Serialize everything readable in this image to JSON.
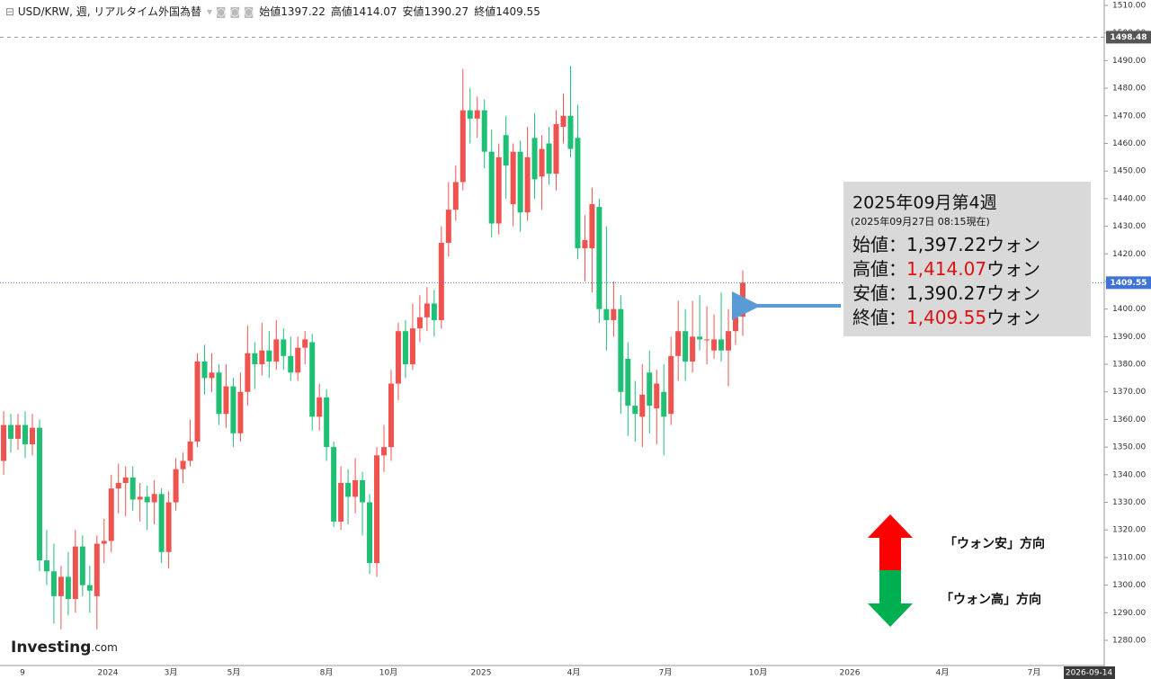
{
  "chart_data": {
    "type": "candlestick",
    "title": "USD/KRW, 週, リアルタイム外国為替",
    "ohlc_labels": [
      "始値",
      "高値",
      "安値",
      "終値"
    ],
    "up_color": "#ef5350",
    "down_color": "#1fbf75",
    "open": [
      1330,
      1345,
      1358,
      1353,
      1358,
      1351,
      1357,
      1309,
      1305,
      1296,
      1303,
      1295,
      1314,
      1300,
      1296,
      1315,
      1316,
      1335,
      1337,
      1339,
      1331,
      1332,
      1330,
      1333,
      1312,
      1330,
      1342,
      1345,
      1352,
      1381,
      1375,
      1377,
      1362,
      1372,
      1355,
      1370,
      1384,
      1380,
      1385,
      1381,
      1389,
      1383,
      1377,
      1386,
      1388,
      1361,
      1368,
      1350,
      1323,
      1337,
      1332,
      1338,
      1330,
      1308,
      1347,
      1350,
      1373,
      1392,
      1380,
      1393,
      1397,
      1402,
      1396,
      1424,
      1436,
      1446,
      1472,
      1469,
      1472,
      1457,
      1431,
      1463,
      1438,
      1457,
      1435,
      1462,
      1448,
      1460,
      1449,
      1466,
      1470,
      1462,
      1422,
      1422,
      1437,
      1400,
      1396,
      1400,
      1382,
      1365,
      1361,
      1377,
      1364,
      1370,
      1362,
      1383,
      1392,
      1381,
      1390,
      1389,
      1385,
      1389,
      1385,
      1392,
      1397.22
    ],
    "high": [
      1350,
      1363,
      1362,
      1362,
      1363,
      1362,
      1360,
      1320,
      1315,
      1307,
      1312,
      1320,
      1318,
      1307,
      1318,
      1324,
      1340,
      1344,
      1343,
      1343,
      1337,
      1336,
      1338,
      1335,
      1334,
      1346,
      1348,
      1360,
      1384,
      1387,
      1384,
      1380,
      1380,
      1375,
      1377,
      1394,
      1388,
      1395,
      1392,
      1396,
      1393,
      1390,
      1390,
      1392,
      1391,
      1373,
      1371,
      1352,
      1343,
      1342,
      1346,
      1341,
      1333,
      1350,
      1358,
      1378,
      1395,
      1396,
      1402,
      1405,
      1408,
      1407,
      1430,
      1446,
      1452,
      1487,
      1480,
      1477,
      1476,
      1465,
      1460,
      1470,
      1460,
      1461,
      1466,
      1471,
      1463,
      1466,
      1472,
      1478,
      1488,
      1474,
      1434,
      1444,
      1440,
      1430,
      1410,
      1405,
      1388,
      1374,
      1380,
      1385,
      1378,
      1380,
      1390,
      1403,
      1400,
      1403,
      1405,
      1401,
      1398,
      1406,
      1400,
      1405,
      1414.07
    ],
    "low": [
      1322,
      1340,
      1348,
      1349,
      1346,
      1347,
      1305,
      1300,
      1286,
      1284,
      1289,
      1290,
      1296,
      1290,
      1284,
      1308,
      1312,
      1326,
      1325,
      1327,
      1323,
      1320,
      1322,
      1308,
      1306,
      1327,
      1337,
      1343,
      1350,
      1369,
      1370,
      1358,
      1357,
      1350,
      1352,
      1365,
      1371,
      1376,
      1375,
      1378,
      1378,
      1374,
      1374,
      1380,
      1356,
      1356,
      1345,
      1321,
      1320,
      1322,
      1326,
      1318,
      1304,
      1303,
      1341,
      1345,
      1367,
      1375,
      1378,
      1388,
      1392,
      1390,
      1393,
      1419,
      1432,
      1443,
      1460,
      1462,
      1451,
      1426,
      1427,
      1440,
      1430,
      1428,
      1432,
      1440,
      1436,
      1445,
      1443,
      1460,
      1455,
      1418,
      1410,
      1406,
      1395,
      1385,
      1390,
      1362,
      1354,
      1352,
      1350,
      1355,
      1351,
      1347,
      1358,
      1374,
      1374,
      1377,
      1385,
      1380,
      1382,
      1381,
      1372,
      1387,
      1390.27
    ],
    "close": [
      1345,
      1358,
      1353,
      1358,
      1351,
      1357,
      1309,
      1305,
      1296,
      1303,
      1295,
      1314,
      1300,
      1298,
      1315,
      1316,
      1335,
      1337,
      1339,
      1331,
      1332,
      1330,
      1333,
      1312,
      1330,
      1342,
      1345,
      1352,
      1381,
      1375,
      1377,
      1362,
      1372,
      1355,
      1370,
      1384,
      1380,
      1385,
      1381,
      1389,
      1383,
      1377,
      1386,
      1389,
      1361,
      1368,
      1350,
      1323,
      1337,
      1332,
      1338,
      1330,
      1308,
      1347,
      1350,
      1373,
      1392,
      1380,
      1393,
      1397,
      1402,
      1396,
      1424,
      1436,
      1446,
      1472,
      1469,
      1472,
      1457,
      1431,
      1455,
      1452,
      1457,
      1435,
      1455,
      1447,
      1458,
      1449,
      1467,
      1470,
      1458,
      1422,
      1425,
      1438,
      1400,
      1396,
      1400,
      1370,
      1365,
      1362,
      1369,
      1365,
      1373,
      1361,
      1383,
      1392,
      1381,
      1390,
      1389,
      1389,
      1389,
      1385,
      1392,
      1397,
      1409.55
    ],
    "xtick_labels": [
      "9",
      "2024",
      "3月",
      "5月",
      "8月",
      "10月",
      "2025",
      "4月",
      "7月",
      "10月",
      "2026",
      "4月",
      "7月"
    ],
    "ylim": [
      1280,
      1510
    ],
    "yticks": [
      {
        "value": 1280,
        "label": "1280.00"
      },
      {
        "value": 1290,
        "label": "1290.00"
      },
      {
        "value": 1300,
        "label": "1300.00"
      },
      {
        "value": 1310,
        "label": "1310.00"
      },
      {
        "value": 1320,
        "label": "1320.00"
      },
      {
        "value": 1330,
        "label": "1330.00"
      },
      {
        "value": 1340,
        "label": "1340.00"
      },
      {
        "value": 1350,
        "label": "1350.00"
      },
      {
        "value": 1360,
        "label": "1360.00"
      },
      {
        "value": 1370,
        "label": "1370.00"
      },
      {
        "value": 1380,
        "label": "1380.00"
      },
      {
        "value": 1390,
        "label": "1390.00"
      },
      {
        "value": 1400,
        "label": "1400.00"
      },
      {
        "value": 1410,
        "label": "1410.00"
      },
      {
        "value": 1420,
        "label": "1420.00"
      },
      {
        "value": 1430,
        "label": "1430.00"
      },
      {
        "value": 1440,
        "label": "1440.00"
      },
      {
        "value": 1450,
        "label": "1450.00"
      },
      {
        "value": 1460,
        "label": "1460.00"
      },
      {
        "value": 1470,
        "label": "1470.00"
      },
      {
        "value": 1480,
        "label": "1480.00"
      },
      {
        "value": 1490,
        "label": "1490.00"
      },
      {
        "value": 1500,
        "label": "1500.00"
      },
      {
        "value": 1510,
        "label": "1510.00"
      }
    ],
    "reference_line": 1498.48,
    "cursor_date": "2026-09-14",
    "annotation": {
      "title": "2025年09月第4週",
      "subtitle": "(2025年09月27日 08:15現在)",
      "rows": [
        {
          "label": "始値：",
          "value": "1,397.22",
          "unit": "ウォン",
          "value_color": "#111111"
        },
        {
          "label": "高値：",
          "value": "1,414.07",
          "unit": "ウォン",
          "value_color": "#e01010"
        },
        {
          "label": "安値：",
          "value": "1,390.27",
          "unit": "ウォン",
          "value_color": "#111111"
        },
        {
          "label": "終値：",
          "value": "1,409.55",
          "unit": "ウォン",
          "value_color": "#e01010"
        }
      ]
    },
    "direction_labels": [
      "「ウォン安」方向",
      "「ウォン高」方向"
    ],
    "logo": {
      "name": "Investing",
      "suffix": ".com"
    }
  }
}
